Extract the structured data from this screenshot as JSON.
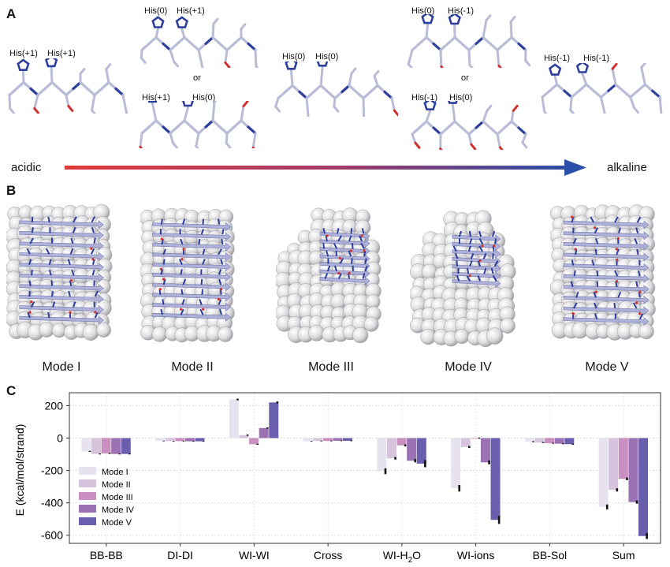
{
  "panel_labels": {
    "a": "A",
    "b": "B",
    "c": "C"
  },
  "panel_a": {
    "structures": [
      {
        "labels": [
          "His(+1)",
          "His(+1)"
        ]
      },
      {
        "labels": [
          "His(0)",
          "His(+1)"
        ]
      },
      {
        "labels": [
          "His(+1)",
          "His(0)"
        ]
      },
      {
        "labels": [
          "His(0)",
          "His(0)"
        ]
      },
      {
        "labels": [
          "His(0)",
          "His(-1)"
        ]
      },
      {
        "labels": [
          "His(-1)",
          "His(0)"
        ]
      },
      {
        "labels": [
          "His(-1)",
          "His(-1)"
        ]
      }
    ],
    "or_label": "or",
    "ph_left": "acidic",
    "ph_right": "alkaline",
    "colors": {
      "acidic": "#e03a3a",
      "alkaline": "#2b4fa8",
      "stick": "#b8bcd6",
      "nitrogen": "#2d3f9c",
      "oxygen": "#d23030"
    }
  },
  "panel_b": {
    "modes": [
      "Mode I",
      "Mode II",
      "Mode III",
      "Mode IV",
      "Mode V"
    ],
    "colors": {
      "sphere": "#dcdcde",
      "sheet": "#a9acd8"
    }
  },
  "chart_data": {
    "type": "bar",
    "ylabel": "E (kcal/mol/strand)",
    "ylim": [
      -650,
      280
    ],
    "yticks": [
      200,
      0,
      -200,
      -400,
      -600
    ],
    "grid": true,
    "legend_position": "bottom-left",
    "categories": [
      "BB-BB",
      "DI-DI",
      "WI-WI",
      "Cross",
      "WI-H2O",
      "WI-ions",
      "BB-Sol",
      "Sum"
    ],
    "category_labels": [
      {
        "pre": "BB-BB",
        "sub": "",
        "post": ""
      },
      {
        "pre": "DI-DI",
        "sub": "",
        "post": ""
      },
      {
        "pre": "WI-WI",
        "sub": "",
        "post": ""
      },
      {
        "pre": "Cross",
        "sub": "",
        "post": ""
      },
      {
        "pre": "WI-H",
        "sub": "2",
        "post": "O"
      },
      {
        "pre": "WI-ions",
        "sub": "",
        "post": ""
      },
      {
        "pre": "BB-Sol",
        "sub": "",
        "post": ""
      },
      {
        "pre": "Sum",
        "sub": "",
        "post": ""
      }
    ],
    "series": [
      {
        "name": "Mode I",
        "color": "#e6e2ef",
        "values": [
          -82,
          -18,
          238,
          -20,
          -205,
          -310,
          -22,
          -425
        ],
        "errors": [
          3,
          2,
          5,
          2,
          18,
          20,
          3,
          15
        ]
      },
      {
        "name": "Mode II",
        "color": "#d6c4dc",
        "values": [
          -98,
          -19,
          18,
          -18,
          -125,
          -55,
          -28,
          -320
        ],
        "errors": [
          3,
          2,
          4,
          2,
          8,
          6,
          3,
          10
        ]
      },
      {
        "name": "Mode III",
        "color": "#c98fc0",
        "values": [
          -95,
          -19,
          -38,
          -18,
          -45,
          0,
          -32,
          -252
        ],
        "errors": [
          3,
          2,
          3,
          2,
          6,
          3,
          3,
          8
        ]
      },
      {
        "name": "Mode IV",
        "color": "#9b72b4",
        "values": [
          -98,
          -20,
          62,
          -17,
          -140,
          -150,
          -35,
          -395
        ],
        "errors": [
          3,
          2,
          4,
          2,
          10,
          12,
          3,
          10
        ]
      },
      {
        "name": "Mode V",
        "color": "#6a5fae",
        "values": [
          -98,
          -20,
          220,
          -17,
          -158,
          -505,
          -38,
          -605
        ],
        "errors": [
          3,
          2,
          6,
          2,
          22,
          25,
          3,
          18
        ]
      }
    ]
  }
}
